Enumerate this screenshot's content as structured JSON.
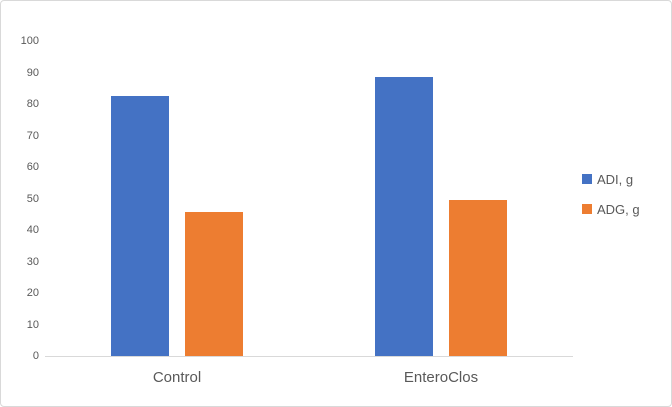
{
  "window": {
    "background": "#ffffff",
    "border_color": "#D9D9D9"
  },
  "chart_data": {
    "type": "bar",
    "title": "",
    "xlabel": "",
    "ylabel": "",
    "categories": [
      "Control",
      "EnteroClos"
    ],
    "series": [
      {
        "name": "ADI, g",
        "color": "#4472C4",
        "values": [
          82.5,
          88.5
        ]
      },
      {
        "name": "ADG, g",
        "color": "#ED7D31",
        "values": [
          45.8,
          49.5
        ]
      }
    ],
    "ylim": [
      0,
      100
    ],
    "ytick_step": 10,
    "ytick_labels": [
      "0",
      "10",
      "20",
      "30",
      "40",
      "50",
      "60",
      "70",
      "80",
      "90",
      "100"
    ],
    "grid": false,
    "legend_position": "right",
    "axis_line_color": "#D9D9D9",
    "text_color": "#595959"
  }
}
